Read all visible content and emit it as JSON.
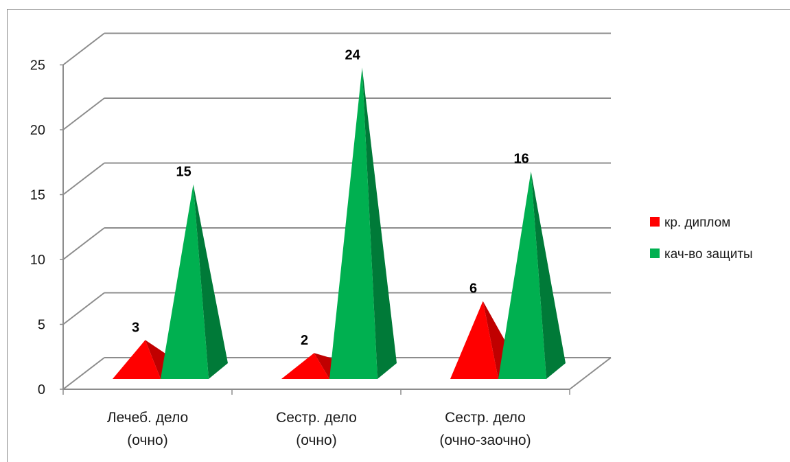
{
  "chart_data": {
    "type": "bar",
    "style": "3d-pyramid",
    "categories": [
      "Лечеб. дело\n(очно)",
      "Сестр. дело\n(очно)",
      "Сестр. дело\n(очно-заочно)"
    ],
    "series": [
      {
        "name": "кр. диплом",
        "values": [
          3,
          2,
          6
        ],
        "color": "#ff0000",
        "shade": "#c00000"
      },
      {
        "name": "кач-во защиты",
        "values": [
          15,
          24,
          16
        ],
        "color": "#00b050",
        "shade": "#007a38"
      }
    ],
    "ylim": [
      0,
      25
    ],
    "yticks": [
      0,
      5,
      10,
      15,
      20,
      25
    ],
    "grid": true,
    "legend_position": "right",
    "data_labels": true
  }
}
